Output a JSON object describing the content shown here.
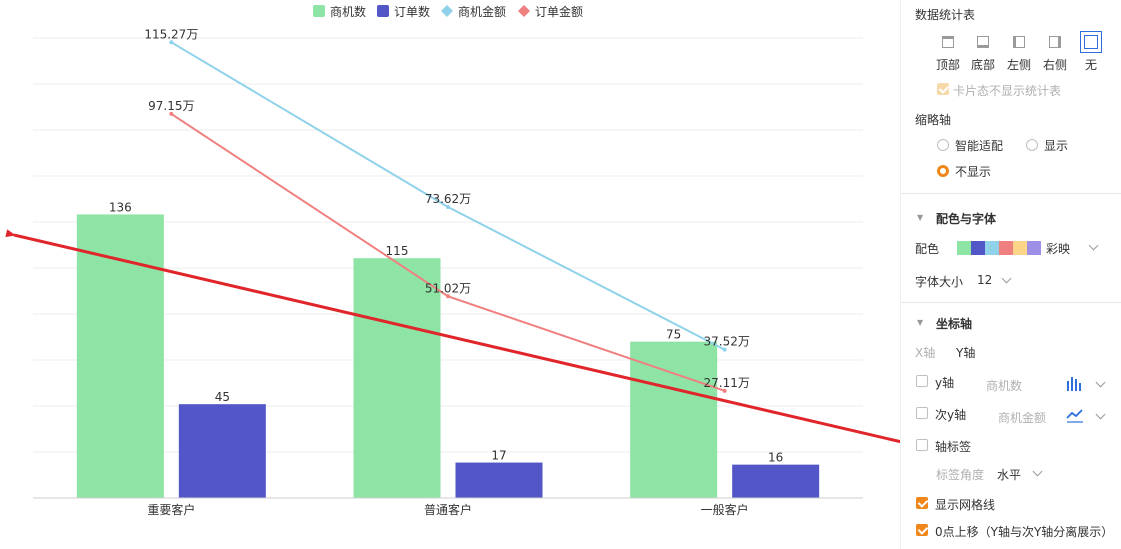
{
  "colors": {
    "opportunity_count": "#8de4a4",
    "order_count": "#5256c6",
    "opportunity_amount": "#8fd2ea",
    "order_amount": "#f08080",
    "annotation_arrow": "#e0262b",
    "accent": "#f0871a",
    "selected_border": "#2f6fdc"
  },
  "chart_data": {
    "type": "bar",
    "categories": [
      "重要客户",
      "普通客户",
      "一般客户"
    ],
    "series": [
      {
        "name": "商机数",
        "type": "bar",
        "values": [
          136,
          115,
          75
        ],
        "labels": [
          "136",
          "115",
          "75"
        ]
      },
      {
        "name": "订单数",
        "type": "bar",
        "values": [
          45,
          17,
          16
        ],
        "labels": [
          "45",
          "17",
          "16"
        ]
      },
      {
        "name": "商机金额",
        "type": "line",
        "values": [
          115.27,
          73.62,
          37.52
        ],
        "labels": [
          "115.27万",
          "73.62万",
          "37.52万"
        ]
      },
      {
        "name": "订单金额",
        "type": "line",
        "values": [
          97.15,
          51.02,
          27.11
        ],
        "labels": [
          "97.15万",
          "51.02万",
          "27.11万"
        ]
      }
    ],
    "legend_position": "top-center",
    "grid": true,
    "ylim_primary": [
      0,
      200
    ],
    "ylim_secondary": [
      0,
      150
    ],
    "xlabel": "",
    "ylabel": ""
  },
  "panel": {
    "stats_table": {
      "title": "数据统计表",
      "positions": [
        {
          "label": "顶部",
          "icon": "layout-top-icon",
          "selected": false
        },
        {
          "label": "底部",
          "icon": "layout-bottom-icon",
          "selected": false
        },
        {
          "label": "左侧",
          "icon": "layout-left-icon",
          "selected": false
        },
        {
          "label": "右侧",
          "icon": "layout-right-icon",
          "selected": false
        },
        {
          "label": "无",
          "icon": "layout-none-icon",
          "selected": true
        }
      ],
      "card_hide_label": "卡片态不显示统计表"
    },
    "thumbnail_axis": {
      "title": "缩略轴",
      "options": [
        "智能适配",
        "显示",
        "不显示"
      ],
      "selected": "不显示"
    },
    "color_font": {
      "title": "配色与字体",
      "color_label": "配色",
      "palette_name": "彩映",
      "palette": [
        "#8de4a4",
        "#5256c6",
        "#8fd2ea",
        "#f08080",
        "#fcd48a",
        "#9d8fe6"
      ],
      "font_size_label": "字体大小",
      "font_size_value": "12"
    },
    "axis": {
      "title": "坐标轴",
      "tabs": [
        "X轴",
        "Y轴"
      ],
      "active_tab": "Y轴",
      "y_axis_label": "y轴",
      "y_axis_field": "商机数",
      "secondary_y_label": "次y轴",
      "secondary_y_field": "商机金额",
      "axis_label_label": "轴标签",
      "label_angle_label": "标签角度",
      "label_angle_value": "水平",
      "show_grid_label": "显示网格线",
      "zero_up_label": "0点上移（Y轴与次Y轴分离展示）"
    }
  }
}
